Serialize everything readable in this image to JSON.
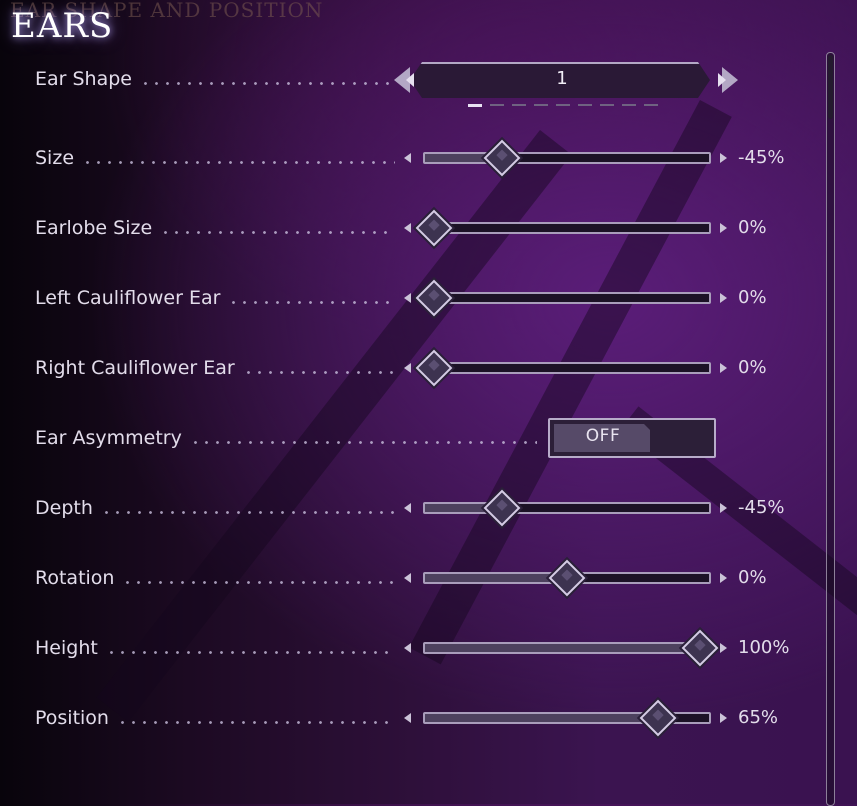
{
  "section_ghost_title": "EAR SHAPE AND POSITION",
  "title": "EARS",
  "ear_shape": {
    "label": "Ear Shape",
    "value": "1",
    "page_count": 9,
    "active_page": 1
  },
  "sliders": [
    {
      "id": "size",
      "label": "Size",
      "value_text": "-45%",
      "position": 0.27
    },
    {
      "id": "earlobe-size",
      "label": "Earlobe Size",
      "value_text": "0%",
      "position": 0.03
    },
    {
      "id": "left-cauliflower-ear",
      "label": "Left Cauliflower Ear",
      "value_text": "0%",
      "position": 0.03
    },
    {
      "id": "right-cauliflower-ear",
      "label": "Right Cauliflower Ear",
      "value_text": "0%",
      "position": 0.03
    }
  ],
  "ear_asymmetry": {
    "label": "Ear Asymmetry",
    "state": "OFF"
  },
  "sliders2": [
    {
      "id": "depth",
      "label": "Depth",
      "value_text": "-45%",
      "position": 0.27
    },
    {
      "id": "rotation",
      "label": "Rotation",
      "value_text": "0%",
      "position": 0.5
    },
    {
      "id": "height",
      "label": "Height",
      "value_text": "100%",
      "position": 0.97
    },
    {
      "id": "position",
      "label": "Position",
      "value_text": "65%",
      "position": 0.82
    }
  ],
  "scrollbar": {
    "position": 0.0
  }
}
